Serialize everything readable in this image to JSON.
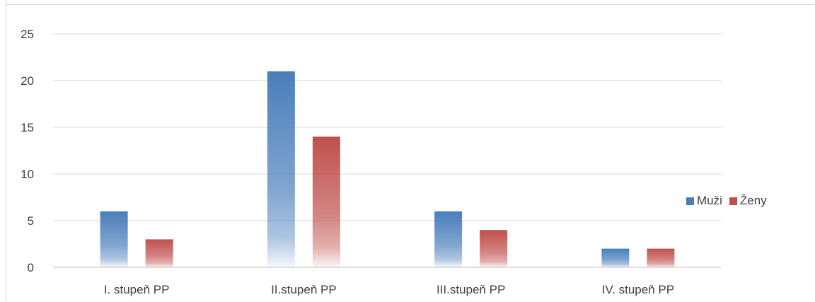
{
  "chart_data": {
    "type": "bar",
    "categories": [
      "I. stupeň PP",
      "II.stupeň PP",
      "III.stupeň PP",
      "IV. stupeň PP"
    ],
    "series": [
      {
        "name": "Muži",
        "values": [
          6,
          21,
          6,
          2
        ],
        "color": "#4a7ebb"
      },
      {
        "name": "Ženy",
        "values": [
          3,
          14,
          4,
          2
        ],
        "color": "#c0504d"
      }
    ],
    "yticks": [
      0,
      5,
      10,
      15,
      20,
      25
    ],
    "ylim": [
      0,
      25
    ],
    "grid": true,
    "legend_position": "right"
  }
}
